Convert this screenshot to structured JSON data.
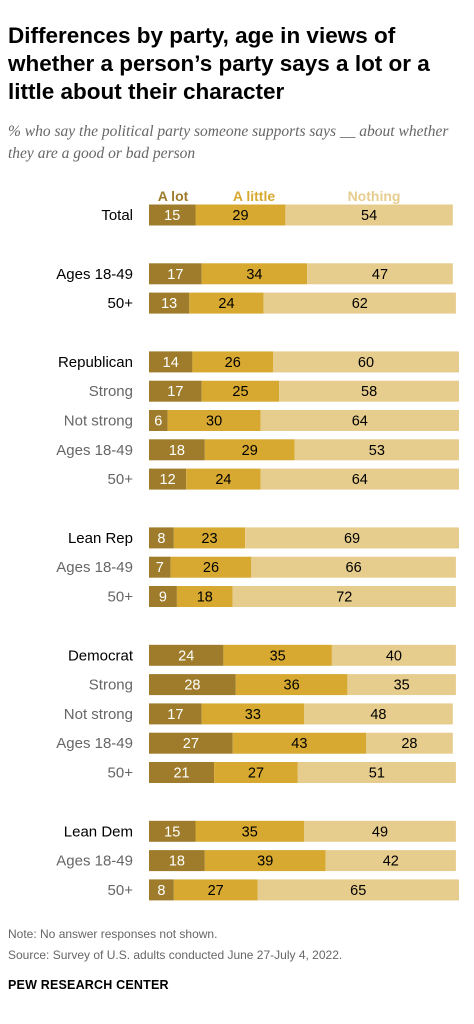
{
  "title": "Differences by party, age in views of whether a person’s party says a lot or a little about their character",
  "subtitle": "% who say the political party someone supports says __ about whether they are a good or bad person",
  "note": "Note: No answer responses not shown.",
  "source": "Source: Survey of U.S. adults conducted June 27-July 4, 2022.",
  "org": "PEW RESEARCH CENTER",
  "colors": {
    "a_lot": "#9e7c2b",
    "a_little": "#d7a931",
    "nothing": "#e6cd8d",
    "label_main": "#000000",
    "label_sub": "#666666"
  },
  "chart_data": {
    "type": "bar",
    "orientation": "horizontal",
    "stacked": true,
    "unit": "percent",
    "xlim": [
      0,
      100
    ],
    "grid": false,
    "legend": "column headers above bars",
    "series": [
      {
        "name": "A lot",
        "color": "#9e7c2b"
      },
      {
        "name": "A little",
        "color": "#d7a931"
      },
      {
        "name": "Nothing",
        "color": "#e6cd8d"
      }
    ],
    "groups": [
      {
        "rows": [
          {
            "label": "Total",
            "sub": false,
            "values": [
              15,
              29,
              54
            ]
          }
        ]
      },
      {
        "rows": [
          {
            "label": "Ages 18-49",
            "sub": false,
            "values": [
              17,
              34,
              47
            ]
          },
          {
            "label": "50+",
            "sub": false,
            "values": [
              13,
              24,
              62
            ]
          }
        ]
      },
      {
        "rows": [
          {
            "label": "Republican",
            "sub": false,
            "values": [
              14,
              26,
              60
            ]
          },
          {
            "label": "Strong",
            "sub": true,
            "values": [
              17,
              25,
              58
            ]
          },
          {
            "label": "Not strong",
            "sub": true,
            "values": [
              6,
              30,
              64
            ]
          },
          {
            "label": "Ages 18-49",
            "sub": true,
            "values": [
              18,
              29,
              53
            ]
          },
          {
            "label": "50+",
            "sub": true,
            "values": [
              12,
              24,
              64
            ]
          }
        ]
      },
      {
        "rows": [
          {
            "label": "Lean Rep",
            "sub": false,
            "values": [
              8,
              23,
              69
            ]
          },
          {
            "label": "Ages 18-49",
            "sub": true,
            "values": [
              7,
              26,
              66
            ]
          },
          {
            "label": "50+",
            "sub": true,
            "values": [
              9,
              18,
              72
            ]
          }
        ]
      },
      {
        "rows": [
          {
            "label": "Democrat",
            "sub": false,
            "values": [
              24,
              35,
              40
            ]
          },
          {
            "label": "Strong",
            "sub": true,
            "values": [
              28,
              36,
              35
            ]
          },
          {
            "label": "Not strong",
            "sub": true,
            "values": [
              17,
              33,
              48
            ]
          },
          {
            "label": "Ages 18-49",
            "sub": true,
            "values": [
              27,
              43,
              28
            ]
          },
          {
            "label": "50+",
            "sub": true,
            "values": [
              21,
              27,
              51
            ]
          }
        ]
      },
      {
        "rows": [
          {
            "label": "Lean Dem",
            "sub": false,
            "values": [
              15,
              35,
              49
            ]
          },
          {
            "label": "Ages 18-49",
            "sub": true,
            "values": [
              18,
              39,
              42
            ]
          },
          {
            "label": "50+",
            "sub": true,
            "values": [
              8,
              27,
              65
            ]
          }
        ]
      }
    ]
  }
}
